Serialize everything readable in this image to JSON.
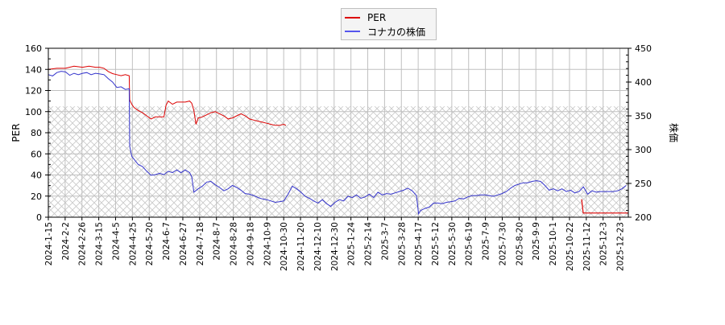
{
  "chart_data": {
    "type": "line",
    "title": "",
    "legend": {
      "position": "top-center",
      "entries": [
        {
          "label": "PER",
          "color": "#dd0000"
        },
        {
          "label": "コナカの株価",
          "color": "#3333cc"
        }
      ]
    },
    "ylabel_left": "PER",
    "ylabel_right": "株価",
    "xlabel": "",
    "ylim_left": [
      0,
      160
    ],
    "ylim_right": [
      200,
      450
    ],
    "yticks_left": [
      0,
      20,
      40,
      60,
      80,
      100,
      120,
      140,
      160
    ],
    "yticks_right": [
      200,
      250,
      300,
      350,
      400,
      450
    ],
    "grid": true,
    "hatched_region": {
      "y_from": 0,
      "y_to": 105,
      "axis": "left"
    },
    "x_tick_labels": [
      "2024-1-15",
      "2024-2-2",
      "2024-2-26",
      "2024-3-15",
      "2024-4-5",
      "2024-4-25",
      "2024-5-20",
      "2024-6-7",
      "2024-6-27",
      "2024-7-18",
      "2024-8-7",
      "2024-8-28",
      "2024-9-18",
      "2024-10-9",
      "2024-10-30",
      "2024-11-20",
      "2024-12-10",
      "2024-12-30",
      "2025-1-24",
      "2025-2-14",
      "2025-3-7",
      "2025-3-28",
      "2025-4-17",
      "2025-5-12",
      "2025-5-30",
      "2025-6-19",
      "2025-7-9",
      "2025-7-30",
      "2025-8-20",
      "2025-9-9",
      "2025-10-1",
      "2025-10-22",
      "2025-11-12",
      "2025-12-3",
      "2025-12-23"
    ],
    "series": [
      {
        "name": "PER",
        "axis": "left",
        "color": "#dd0000",
        "points": [
          [
            0,
            140
          ],
          [
            2,
            141
          ],
          [
            4,
            141
          ],
          [
            6,
            143
          ],
          [
            8,
            142
          ],
          [
            9.5,
            143
          ],
          [
            11,
            142
          ],
          [
            12,
            142
          ],
          [
            13,
            141
          ],
          [
            14,
            138
          ],
          [
            15,
            136
          ],
          [
            16,
            135
          ],
          [
            17,
            134
          ],
          [
            18,
            135
          ],
          [
            18.9,
            134
          ],
          [
            19,
            111
          ],
          [
            19.5,
            107
          ],
          [
            20,
            104
          ],
          [
            21,
            101
          ],
          [
            22,
            99
          ],
          [
            23,
            96
          ],
          [
            24,
            93
          ],
          [
            25,
            95
          ],
          [
            26,
            95
          ],
          [
            27,
            95
          ],
          [
            27.5,
            106
          ],
          [
            28,
            110
          ],
          [
            29,
            107
          ],
          [
            30,
            109
          ],
          [
            31,
            109
          ],
          [
            32,
            109
          ],
          [
            33,
            110
          ],
          [
            33.5,
            108
          ],
          [
            34,
            101
          ],
          [
            34.5,
            88
          ],
          [
            35,
            94
          ],
          [
            36,
            95
          ],
          [
            37,
            97
          ],
          [
            38,
            99
          ],
          [
            39,
            100
          ],
          [
            40,
            98
          ],
          [
            41,
            96
          ],
          [
            42,
            93
          ],
          [
            43,
            94
          ],
          [
            44,
            96
          ],
          [
            45,
            98
          ],
          [
            46,
            96
          ],
          [
            47,
            93
          ],
          [
            48,
            92
          ],
          [
            49,
            91
          ],
          [
            50,
            90
          ],
          [
            51,
            89
          ],
          [
            52,
            88
          ],
          [
            53,
            87
          ],
          [
            54,
            87
          ],
          [
            55,
            88
          ],
          [
            55.5,
            87
          ]
        ],
        "note": "x in tick-index units; PER line resumes near end",
        "tail": [
          [
            64.9,
            17
          ],
          [
            65.3,
            4
          ],
          [
            66,
            4
          ],
          [
            68,
            4
          ],
          [
            70,
            4
          ]
        ]
      },
      {
        "name": "コナカの株価",
        "axis": "right",
        "color": "#3333cc",
        "points": [
          [
            0,
            411
          ],
          [
            1,
            409
          ],
          [
            2,
            414
          ],
          [
            3,
            416
          ],
          [
            4,
            415
          ],
          [
            5,
            410
          ],
          [
            6,
            413
          ],
          [
            7,
            411
          ],
          [
            8,
            413
          ],
          [
            9,
            414
          ],
          [
            10,
            411
          ],
          [
            11,
            413
          ],
          [
            12,
            412
          ],
          [
            13,
            411
          ],
          [
            14,
            405
          ],
          [
            15,
            400
          ],
          [
            16,
            392
          ],
          [
            17,
            393
          ],
          [
            18,
            389
          ],
          [
            18.9,
            390
          ],
          [
            19,
            305
          ],
          [
            19.5,
            290
          ],
          [
            20,
            286
          ],
          [
            21,
            278
          ],
          [
            22,
            275
          ],
          [
            23,
            268
          ],
          [
            24,
            262
          ],
          [
            25,
            263
          ],
          [
            26,
            265
          ],
          [
            27,
            263
          ],
          [
            28,
            268
          ],
          [
            29,
            266
          ],
          [
            30,
            270
          ],
          [
            31,
            266
          ],
          [
            32,
            270
          ],
          [
            33,
            266
          ],
          [
            33.5,
            260
          ],
          [
            34,
            237
          ],
          [
            35,
            242
          ],
          [
            36,
            246
          ],
          [
            37,
            252
          ],
          [
            38,
            253
          ],
          [
            39,
            248
          ],
          [
            40,
            244
          ],
          [
            41,
            239
          ],
          [
            42,
            242
          ],
          [
            43,
            247
          ],
          [
            44,
            244
          ],
          [
            45,
            240
          ],
          [
            46,
            235
          ],
          [
            47,
            234
          ],
          [
            48,
            232
          ],
          [
            49,
            229
          ],
          [
            50,
            227
          ],
          [
            51,
            226
          ],
          [
            52,
            224
          ],
          [
            53,
            222
          ],
          [
            54,
            223
          ],
          [
            55,
            224
          ],
          [
            56,
            234
          ],
          [
            57,
            246
          ],
          [
            58,
            242
          ],
          [
            59,
            237
          ],
          [
            60,
            231
          ],
          [
            61,
            228
          ],
          [
            62,
            224
          ],
          [
            63,
            221
          ],
          [
            64,
            226
          ],
          [
            65,
            220
          ],
          [
            66,
            216
          ],
          [
            67,
            222
          ],
          [
            68,
            226
          ],
          [
            69,
            224
          ],
          [
            70,
            231
          ],
          [
            71,
            229
          ],
          [
            72,
            233
          ],
          [
            73,
            228
          ],
          [
            74,
            230
          ],
          [
            75,
            234
          ],
          [
            76,
            229
          ],
          [
            77,
            237
          ],
          [
            78,
            233
          ],
          [
            79,
            235
          ],
          [
            80,
            234
          ],
          [
            81,
            236
          ],
          [
            82,
            238
          ],
          [
            83,
            240
          ],
          [
            84,
            243
          ],
          [
            85,
            239
          ],
          [
            86,
            232
          ],
          [
            86.5,
            205
          ],
          [
            87,
            210
          ],
          [
            88,
            213
          ],
          [
            89,
            215
          ],
          [
            90,
            221
          ],
          [
            91,
            221
          ],
          [
            92,
            220
          ],
          [
            93,
            222
          ],
          [
            94,
            223
          ],
          [
            95,
            224
          ],
          [
            96,
            228
          ],
          [
            97,
            227
          ],
          [
            98,
            230
          ],
          [
            99,
            232
          ],
          [
            100,
            232
          ],
          [
            101,
            233
          ],
          [
            102,
            233
          ],
          [
            103,
            232
          ],
          [
            104,
            231
          ],
          [
            105,
            233
          ],
          [
            106,
            235
          ],
          [
            107,
            238
          ],
          [
            108,
            243
          ],
          [
            109,
            247
          ],
          [
            110,
            249
          ],
          [
            111,
            251
          ],
          [
            112,
            251
          ],
          [
            113,
            253
          ],
          [
            114,
            254
          ],
          [
            115,
            253
          ],
          [
            116,
            247
          ],
          [
            117,
            240
          ],
          [
            118,
            242
          ],
          [
            119,
            239
          ],
          [
            120,
            242
          ],
          [
            121,
            238
          ],
          [
            122,
            240
          ],
          [
            123,
            236
          ],
          [
            124,
            238
          ],
          [
            125,
            245
          ],
          [
            126,
            234
          ],
          [
            127,
            239
          ],
          [
            128,
            237
          ],
          [
            129,
            238
          ],
          [
            130,
            238
          ],
          [
            131,
            238
          ],
          [
            132,
            238
          ],
          [
            133,
            239
          ],
          [
            134,
            242
          ],
          [
            135,
            247
          ]
        ]
      }
    ]
  }
}
